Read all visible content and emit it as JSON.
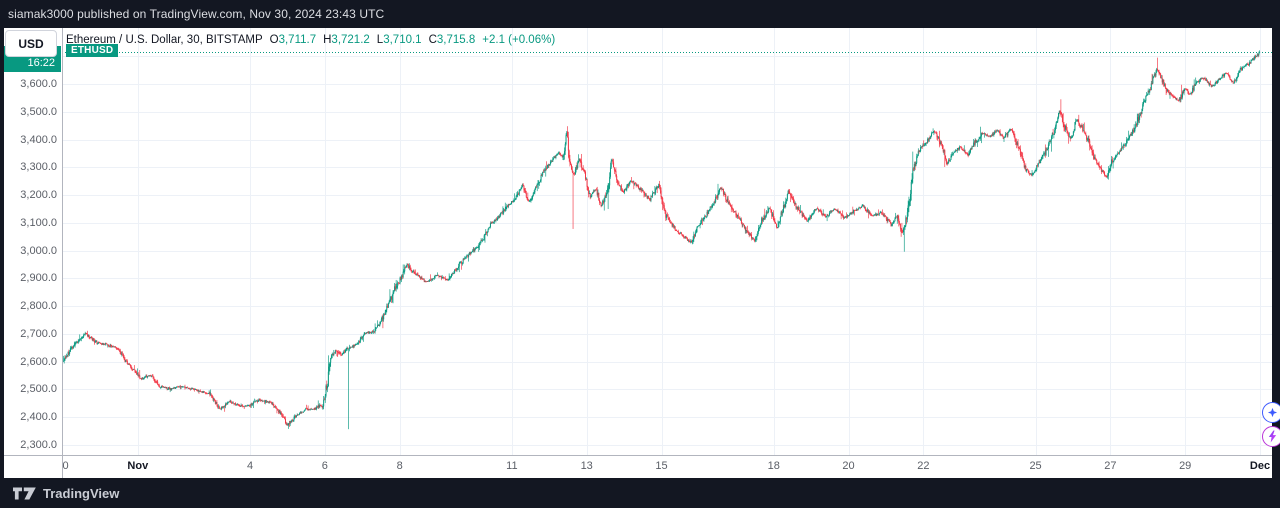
{
  "header": {
    "text": "siamak3000 published on TradingView.com, Nov 30, 2024 23:43 UTC"
  },
  "toolbar": {
    "currency": "USD",
    "title": "Ethereum / U.S. Dollar, 30, BITSTAMP",
    "o_label": "O",
    "o": "3,711.7",
    "h_label": "H",
    "h": "3,721.2",
    "l_label": "L",
    "l": "3,710.1",
    "c_label": "C",
    "c": "3,715.8",
    "change": "+2.1 (+0.06%)",
    "symbol_badge": "ETHUSD",
    "countdown": "16:22"
  },
  "footer": {
    "brand": "TradingView",
    "logo_icon": "tradingview-logo-icon"
  },
  "floating_buttons": {
    "top_icon": "sparkle-icon",
    "bottom_icon": "lightning-icon"
  },
  "colors": {
    "up": "#089981",
    "down": "#f23645",
    "accent": "#089981",
    "bar_bg": "#131722",
    "grid": "#edf1f7",
    "axis_text": "#5a5e66",
    "axis_border": "#b2b5be",
    "blue": "#3d5afe",
    "purple": "#b935d8"
  },
  "price_axis": {
    "labels": [
      {
        "v": 3600,
        "label": "3,600.0"
      },
      {
        "v": 3500,
        "label": "3,500.0"
      },
      {
        "v": 3400,
        "label": "3,400.0"
      },
      {
        "v": 3300,
        "label": "3,300.0"
      },
      {
        "v": 3200,
        "label": "3,200.0"
      },
      {
        "v": 3100,
        "label": "3,100.0"
      },
      {
        "v": 3000,
        "label": "3,000.0"
      },
      {
        "v": 2900,
        "label": "2,900.0"
      },
      {
        "v": 2800,
        "label": "2,800.0"
      },
      {
        "v": 2700,
        "label": "2,700.0"
      },
      {
        "v": 2600,
        "label": "2,600.0"
      },
      {
        "v": 2500,
        "label": "2,500.0"
      },
      {
        "v": 2400,
        "label": "2,400.0"
      },
      {
        "v": 2300,
        "label": "2,300.0"
      }
    ]
  },
  "time_axis": {
    "ticks": [
      {
        "d": 0.07,
        "label": "0",
        "bold": false,
        "grid": false
      },
      {
        "d": 2,
        "label": "Nov",
        "bold": true,
        "grid": true
      },
      {
        "d": 5,
        "label": "4",
        "bold": false,
        "grid": true
      },
      {
        "d": 7,
        "label": "6",
        "bold": false,
        "grid": true
      },
      {
        "d": 9,
        "label": "8",
        "bold": false,
        "grid": true
      },
      {
        "d": 12,
        "label": "11",
        "bold": false,
        "grid": true
      },
      {
        "d": 14,
        "label": "13",
        "bold": false,
        "grid": true
      },
      {
        "d": 16,
        "label": "15",
        "bold": false,
        "grid": true
      },
      {
        "d": 19,
        "label": "18",
        "bold": false,
        "grid": true
      },
      {
        "d": 21,
        "label": "20",
        "bold": false,
        "grid": true
      },
      {
        "d": 23,
        "label": "22",
        "bold": false,
        "grid": true
      },
      {
        "d": 26,
        "label": "25",
        "bold": false,
        "grid": true
      },
      {
        "d": 28,
        "label": "27",
        "bold": false,
        "grid": true
      },
      {
        "d": 30,
        "label": "29",
        "bold": false,
        "grid": true
      },
      {
        "d": 32,
        "label": "Dec",
        "bold": true,
        "grid": true
      }
    ]
  },
  "chart_data": {
    "type": "candlestick",
    "title": "Ethereum / U.S. Dollar, 30, BITSTAMP",
    "symbol": "ETHUSD",
    "exchange": "BITSTAMP",
    "interval_minutes": 30,
    "y_axis_range": [
      2300,
      3600
    ],
    "price_gridline_step": 100,
    "current_price": 3715.8,
    "last_bar": {
      "o": 3711.7,
      "h": 3721.2,
      "l": 3710.1,
      "c": 3715.8,
      "change": 2.1,
      "change_pct": 0.06
    },
    "days": 32,
    "bars_per_day": 48,
    "day0": "Oct 30",
    "anchors": [
      [
        0,
        2602
      ],
      [
        0.3,
        2660
      ],
      [
        0.6,
        2702
      ],
      [
        0.9,
        2670
      ],
      [
        1.2,
        2660
      ],
      [
        1.45,
        2650
      ],
      [
        1.7,
        2600
      ],
      [
        1.95,
        2560
      ],
      [
        2.1,
        2538
      ],
      [
        2.35,
        2552
      ],
      [
        2.6,
        2512
      ],
      [
        2.9,
        2502
      ],
      [
        3.2,
        2512
      ],
      [
        3.6,
        2498
      ],
      [
        3.95,
        2482
      ],
      [
        4.2,
        2428
      ],
      [
        4.45,
        2458
      ],
      [
        4.75,
        2438
      ],
      [
        5,
        2442
      ],
      [
        5.25,
        2462
      ],
      [
        5.55,
        2452
      ],
      [
        5.75,
        2428
      ],
      [
        6.02,
        2372
      ],
      [
        6.25,
        2408
      ],
      [
        6.5,
        2428
      ],
      [
        6.75,
        2432
      ],
      [
        6.95,
        2442
      ],
      [
        7.08,
        2528
      ],
      [
        7.18,
        2612
      ],
      [
        7.3,
        2642
      ],
      [
        7.45,
        2622
      ],
      [
        7.6,
        2648
      ],
      [
        7.75,
        2652
      ],
      [
        7.9,
        2668
      ],
      [
        8.1,
        2702
      ],
      [
        8.3,
        2708
      ],
      [
        8.5,
        2742
      ],
      [
        8.7,
        2802
      ],
      [
        8.9,
        2868
      ],
      [
        9.05,
        2902
      ],
      [
        9.2,
        2948
      ],
      [
        9.35,
        2928
      ],
      [
        9.55,
        2902
      ],
      [
        9.75,
        2888
      ],
      [
        10,
        2912
      ],
      [
        10.3,
        2895
      ],
      [
        10.6,
        2948
      ],
      [
        10.9,
        2992
      ],
      [
        11.15,
        3022
      ],
      [
        11.4,
        3088
      ],
      [
        11.65,
        3122
      ],
      [
        11.9,
        3162
      ],
      [
        12.1,
        3188
      ],
      [
        12.3,
        3238
      ],
      [
        12.45,
        3172
      ],
      [
        12.65,
        3222
      ],
      [
        12.85,
        3282
      ],
      [
        13.05,
        3322
      ],
      [
        13.25,
        3352
      ],
      [
        13.38,
        3332
      ],
      [
        13.48,
        3428
      ],
      [
        13.58,
        3302
      ],
      [
        13.68,
        3272
      ],
      [
        13.8,
        3332
      ],
      [
        13.95,
        3282
      ],
      [
        14.1,
        3192
      ],
      [
        14.25,
        3222
      ],
      [
        14.4,
        3162
      ],
      [
        14.55,
        3202
      ],
      [
        14.68,
        3328
      ],
      [
        14.82,
        3248
      ],
      [
        15,
        3212
      ],
      [
        15.2,
        3252
      ],
      [
        15.45,
        3222
      ],
      [
        15.7,
        3182
      ],
      [
        15.95,
        3242
      ],
      [
        16.1,
        3132
      ],
      [
        16.35,
        3082
      ],
      [
        16.6,
        3052
      ],
      [
        16.8,
        3028
      ],
      [
        17,
        3092
      ],
      [
        17.2,
        3128
      ],
      [
        17.45,
        3182
      ],
      [
        17.6,
        3228
      ],
      [
        17.8,
        3172
      ],
      [
        18.05,
        3122
      ],
      [
        18.3,
        3072
      ],
      [
        18.5,
        3035
      ],
      [
        18.7,
        3112
      ],
      [
        18.9,
        3152
      ],
      [
        19.1,
        3082
      ],
      [
        19.4,
        3212
      ],
      [
        19.65,
        3152
      ],
      [
        19.9,
        3108
      ],
      [
        20.15,
        3152
      ],
      [
        20.4,
        3122
      ],
      [
        20.65,
        3152
      ],
      [
        20.9,
        3118
      ],
      [
        21.15,
        3142
      ],
      [
        21.4,
        3162
      ],
      [
        21.65,
        3122
      ],
      [
        21.9,
        3138
      ],
      [
        22.15,
        3092
      ],
      [
        22.3,
        3128
      ],
      [
        22.45,
        3062
      ],
      [
        22.6,
        3152
      ],
      [
        22.75,
        3302
      ],
      [
        22.9,
        3362
      ],
      [
        23.1,
        3392
      ],
      [
        23.3,
        3432
      ],
      [
        23.5,
        3382
      ],
      [
        23.65,
        3312
      ],
      [
        23.8,
        3352
      ],
      [
        24,
        3372
      ],
      [
        24.2,
        3342
      ],
      [
        24.4,
        3392
      ],
      [
        24.6,
        3422
      ],
      [
        24.8,
        3412
      ],
      [
        25,
        3432
      ],
      [
        25.15,
        3402
      ],
      [
        25.35,
        3442
      ],
      [
        25.55,
        3372
      ],
      [
        25.75,
        3292
      ],
      [
        25.9,
        3272
      ],
      [
        26.1,
        3312
      ],
      [
        26.3,
        3362
      ],
      [
        26.5,
        3432
      ],
      [
        26.65,
        3502
      ],
      [
        26.8,
        3442
      ],
      [
        26.95,
        3402
      ],
      [
        27.1,
        3472
      ],
      [
        27.25,
        3442
      ],
      [
        27.4,
        3402
      ],
      [
        27.55,
        3342
      ],
      [
        27.75,
        3292
      ],
      [
        27.9,
        3262
      ],
      [
        28.05,
        3322
      ],
      [
        28.2,
        3352
      ],
      [
        28.45,
        3392
      ],
      [
        28.7,
        3452
      ],
      [
        28.9,
        3532
      ],
      [
        29.1,
        3592
      ],
      [
        29.25,
        3652
      ],
      [
        29.4,
        3612
      ],
      [
        29.55,
        3572
      ],
      [
        29.7,
        3552
      ],
      [
        29.85,
        3542
      ],
      [
        30,
        3582
      ],
      [
        30.15,
        3562
      ],
      [
        30.3,
        3602
      ],
      [
        30.5,
        3622
      ],
      [
        30.7,
        3592
      ],
      [
        30.9,
        3612
      ],
      [
        31.1,
        3642
      ],
      [
        31.3,
        3602
      ],
      [
        31.5,
        3652
      ],
      [
        31.7,
        3672
      ],
      [
        31.85,
        3692
      ],
      [
        32,
        3716
      ]
    ],
    "forced_wicks": [
      {
        "d": 6.03,
        "side": "low",
        "price": 2358
      },
      {
        "d": 7.62,
        "side": "low",
        "price": 2357
      },
      {
        "d": 13.48,
        "side": "high",
        "price": 3448
      },
      {
        "d": 13.62,
        "side": "low",
        "price": 3078
      },
      {
        "d": 22.48,
        "side": "low",
        "price": 2996
      },
      {
        "d": 26.66,
        "side": "high",
        "price": 3545
      },
      {
        "d": 29.25,
        "side": "high",
        "price": 3695
      }
    ]
  }
}
